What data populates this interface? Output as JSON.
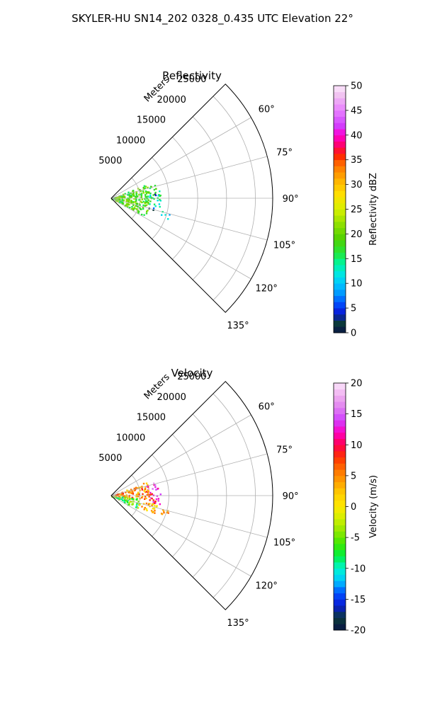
{
  "figure": {
    "suptitle": "SKYLER-HU  SN14_202  0328_0.435 UTC Elevation 22°"
  },
  "chart_data": [
    {
      "type": "polar-sector",
      "title": "Reflectivity",
      "radial_axis_label": "Meters",
      "radial_ticks": [
        "5000",
        "10000",
        "15000",
        "20000",
        "25000"
      ],
      "radial_tick_values": [
        5000,
        10000,
        15000,
        20000,
        25000
      ],
      "rmax": 28000,
      "angle_range_deg": [
        45,
        135
      ],
      "angle_ticks": [
        "60°",
        "75°",
        "90°",
        "105°",
        "120°",
        "135°"
      ],
      "angle_tick_values": [
        60,
        75,
        90,
        105,
        120,
        135
      ],
      "grid": true,
      "colorbar": {
        "label": "Reflectivity dBZ",
        "min": 0,
        "max": 50,
        "ticks": [
          "0",
          "5",
          "10",
          "15",
          "20",
          "25",
          "30",
          "35",
          "40",
          "45",
          "50"
        ]
      },
      "echo_regions": [
        {
          "az": [
            68,
            118
          ],
          "r": [
            0,
            6500
          ],
          "value": 19
        },
        {
          "az": [
            80,
            100
          ],
          "r": [
            6500,
            8500
          ],
          "value": 14
        },
        {
          "az": [
            72,
            80
          ],
          "r": [
            6000,
            8000
          ],
          "value": 18
        },
        {
          "az": [
            82,
            86
          ],
          "r": [
            7000,
            8000
          ],
          "value": 4
        },
        {
          "az": [
            98,
            106
          ],
          "r": [
            6500,
            7500
          ],
          "value": 4
        },
        {
          "az": [
            104,
            110
          ],
          "r": [
            9000,
            10500
          ],
          "value": 12
        }
      ]
    },
    {
      "type": "polar-sector",
      "title": "Velocity",
      "radial_axis_label": "Meters",
      "radial_ticks": [
        "5000",
        "10000",
        "15000",
        "20000",
        "25000"
      ],
      "radial_tick_values": [
        5000,
        10000,
        15000,
        20000,
        25000
      ],
      "rmax": 28000,
      "angle_range_deg": [
        45,
        135
      ],
      "angle_ticks": [
        "60°",
        "75°",
        "90°",
        "105°",
        "120°",
        "135°"
      ],
      "angle_tick_values": [
        60,
        75,
        90,
        105,
        120,
        135
      ],
      "grid": true,
      "colorbar": {
        "label": "Velocity (m/s)",
        "min": -20,
        "max": 20,
        "ticks": [
          "-20",
          "-15",
          "-10",
          "-5",
          "0",
          "5",
          "10",
          "15",
          "20"
        ]
      },
      "echo_regions": [
        {
          "az": [
            68,
            95
          ],
          "r": [
            0,
            6500
          ],
          "value": 5
        },
        {
          "az": [
            95,
            118
          ],
          "r": [
            0,
            5000
          ],
          "value": -6
        },
        {
          "az": [
            80,
            100
          ],
          "r": [
            6500,
            8500
          ],
          "value": 11
        },
        {
          "az": [
            72,
            80
          ],
          "r": [
            6000,
            8000
          ],
          "value": 15
        },
        {
          "az": [
            100,
            112
          ],
          "r": [
            5000,
            8000
          ],
          "value": 2
        },
        {
          "az": [
            104,
            110
          ],
          "r": [
            9000,
            10500
          ],
          "value": 6
        }
      ]
    }
  ]
}
